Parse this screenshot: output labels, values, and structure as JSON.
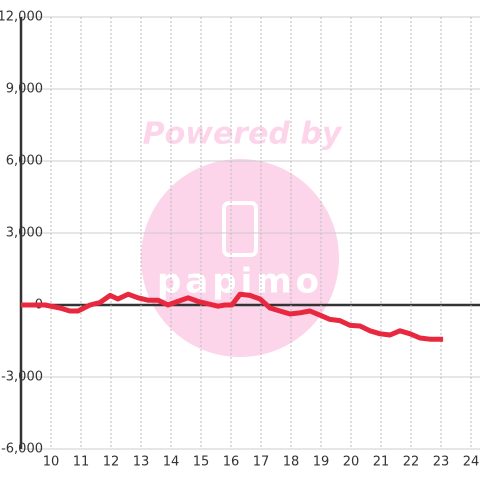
{
  "chart_data": {
    "type": "line",
    "watermark": {
      "text": "Powered by",
      "logo": "papimo"
    },
    "x": [
      9.0,
      9.8,
      10.3,
      10.63,
      10.9,
      11.3,
      11.63,
      11.97,
      12.23,
      12.57,
      12.9,
      13.23,
      13.57,
      13.9,
      14.23,
      14.57,
      14.9,
      15.23,
      15.57,
      15.8,
      16.03,
      16.3,
      16.63,
      16.97,
      17.3,
      17.63,
      17.97,
      18.3,
      18.63,
      18.97,
      19.3,
      19.63,
      19.97,
      20.3,
      20.63,
      20.97,
      21.3,
      21.63,
      21.97,
      22.3,
      22.63,
      23.07
    ],
    "series": [
      {
        "color": "#e8283f",
        "values": [
          0,
          0,
          -125,
          -250,
          -250,
          0,
          100,
          400,
          250,
          450,
          300,
          200,
          200,
          0,
          150,
          300,
          150,
          50,
          -50,
          0,
          0,
          450,
          400,
          250,
          -125,
          -250,
          -375,
          -325,
          -250,
          -425,
          -600,
          -650,
          -850,
          -875,
          -1075,
          -1200,
          -1250,
          -1075,
          -1200,
          -1375,
          -1425,
          -1425
        ]
      }
    ],
    "xlim": [
      9,
      24.3
    ],
    "xticks": [
      10,
      11,
      12,
      13,
      14,
      15,
      16,
      17,
      18,
      19,
      20,
      21,
      22,
      23,
      24
    ],
    "ylim": [
      -6000,
      12000
    ],
    "yticks": [
      {
        "value": -6000,
        "label": "-6,000"
      },
      {
        "value": -3000,
        "label": "-3,000"
      },
      0,
      {
        "value": 3000,
        "label": "3,000"
      },
      {
        "value": 6000,
        "label": "6,000"
      },
      {
        "value": 9000,
        "label": "9,000"
      },
      {
        "value": 12000,
        "label": "12,000"
      }
    ],
    "grid": true
  }
}
